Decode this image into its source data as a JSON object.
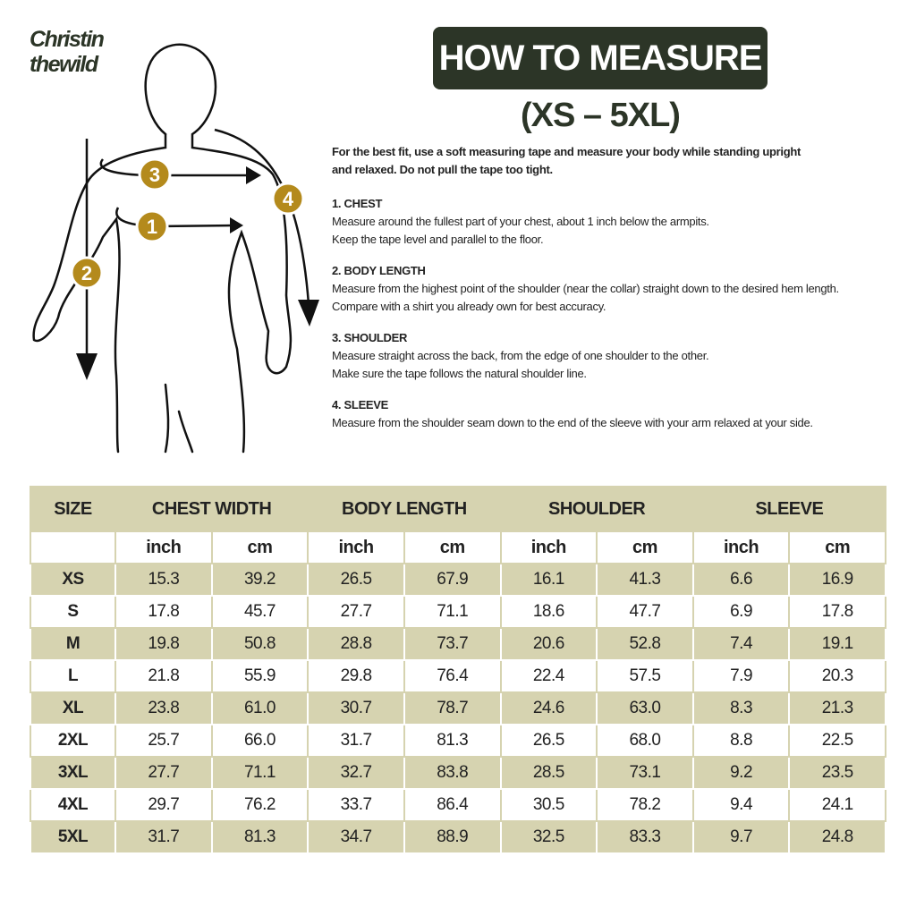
{
  "logo": {
    "line1": "Christin",
    "line2": "thewild"
  },
  "header": {
    "title": "HOW TO MEASURE",
    "subtitle": "(XS – 5XL)"
  },
  "markers": [
    "1",
    "2",
    "3",
    "4"
  ],
  "intro": "For the best fit, use a soft measuring tape and measure your body while standing upright and relaxed. Do not pull the tape too tight.",
  "steps": [
    {
      "title": "1. CHEST",
      "text": [
        "Measure around the fullest part of your chest, about 1 inch below the armpits.",
        "Keep the tape level and parallel to the floor."
      ]
    },
    {
      "title": "2. BODY LENGTH",
      "text": [
        "Measure from the highest point of the shoulder (near the collar) straight down to the desired hem length.",
        "Compare with a shirt you already own for best accuracy."
      ]
    },
    {
      "title": "3. SHOULDER",
      "text": [
        "Measure straight across the back, from the edge of one shoulder to the other.",
        "Make sure the tape follows the natural shoulder line."
      ]
    },
    {
      "title": "4. SLEEVE",
      "text": [
        "Measure from the shoulder seam down to the end of the sleeve with your arm relaxed at your side."
      ]
    }
  ],
  "table": {
    "headers": [
      "SIZE",
      "CHEST WIDTH",
      "BODY LENGTH",
      "SHOULDER",
      "SLEEVE"
    ],
    "units": [
      "inch",
      "cm",
      "inch",
      "cm",
      "inch",
      "cm",
      "inch",
      "cm"
    ],
    "rows": [
      [
        "XS",
        "15.3",
        "39.2",
        "26.5",
        "67.9",
        "16.1",
        "41.3",
        "6.6",
        "16.9"
      ],
      [
        "S",
        "17.8",
        "45.7",
        "27.7",
        "71.1",
        "18.6",
        "47.7",
        "6.9",
        "17.8"
      ],
      [
        "M",
        "19.8",
        "50.8",
        "28.8",
        "73.7",
        "20.6",
        "52.8",
        "7.4",
        "19.1"
      ],
      [
        "L",
        "21.8",
        "55.9",
        "29.8",
        "76.4",
        "22.4",
        "57.5",
        "7.9",
        "20.3"
      ],
      [
        "XL",
        "23.8",
        "61.0",
        "30.7",
        "78.7",
        "24.6",
        "63.0",
        "8.3",
        "21.3"
      ],
      [
        "2XL",
        "25.7",
        "66.0",
        "31.7",
        "81.3",
        "26.5",
        "68.0",
        "8.8",
        "22.5"
      ],
      [
        "3XL",
        "27.7",
        "71.1",
        "32.7",
        "83.8",
        "28.5",
        "73.1",
        "9.2",
        "23.5"
      ],
      [
        "4XL",
        "29.7",
        "76.2",
        "33.7",
        "86.4",
        "30.5",
        "78.2",
        "9.4",
        "24.1"
      ],
      [
        "5XL",
        "31.7",
        "81.3",
        "34.7",
        "88.9",
        "32.5",
        "83.3",
        "9.7",
        "24.8"
      ]
    ]
  }
}
